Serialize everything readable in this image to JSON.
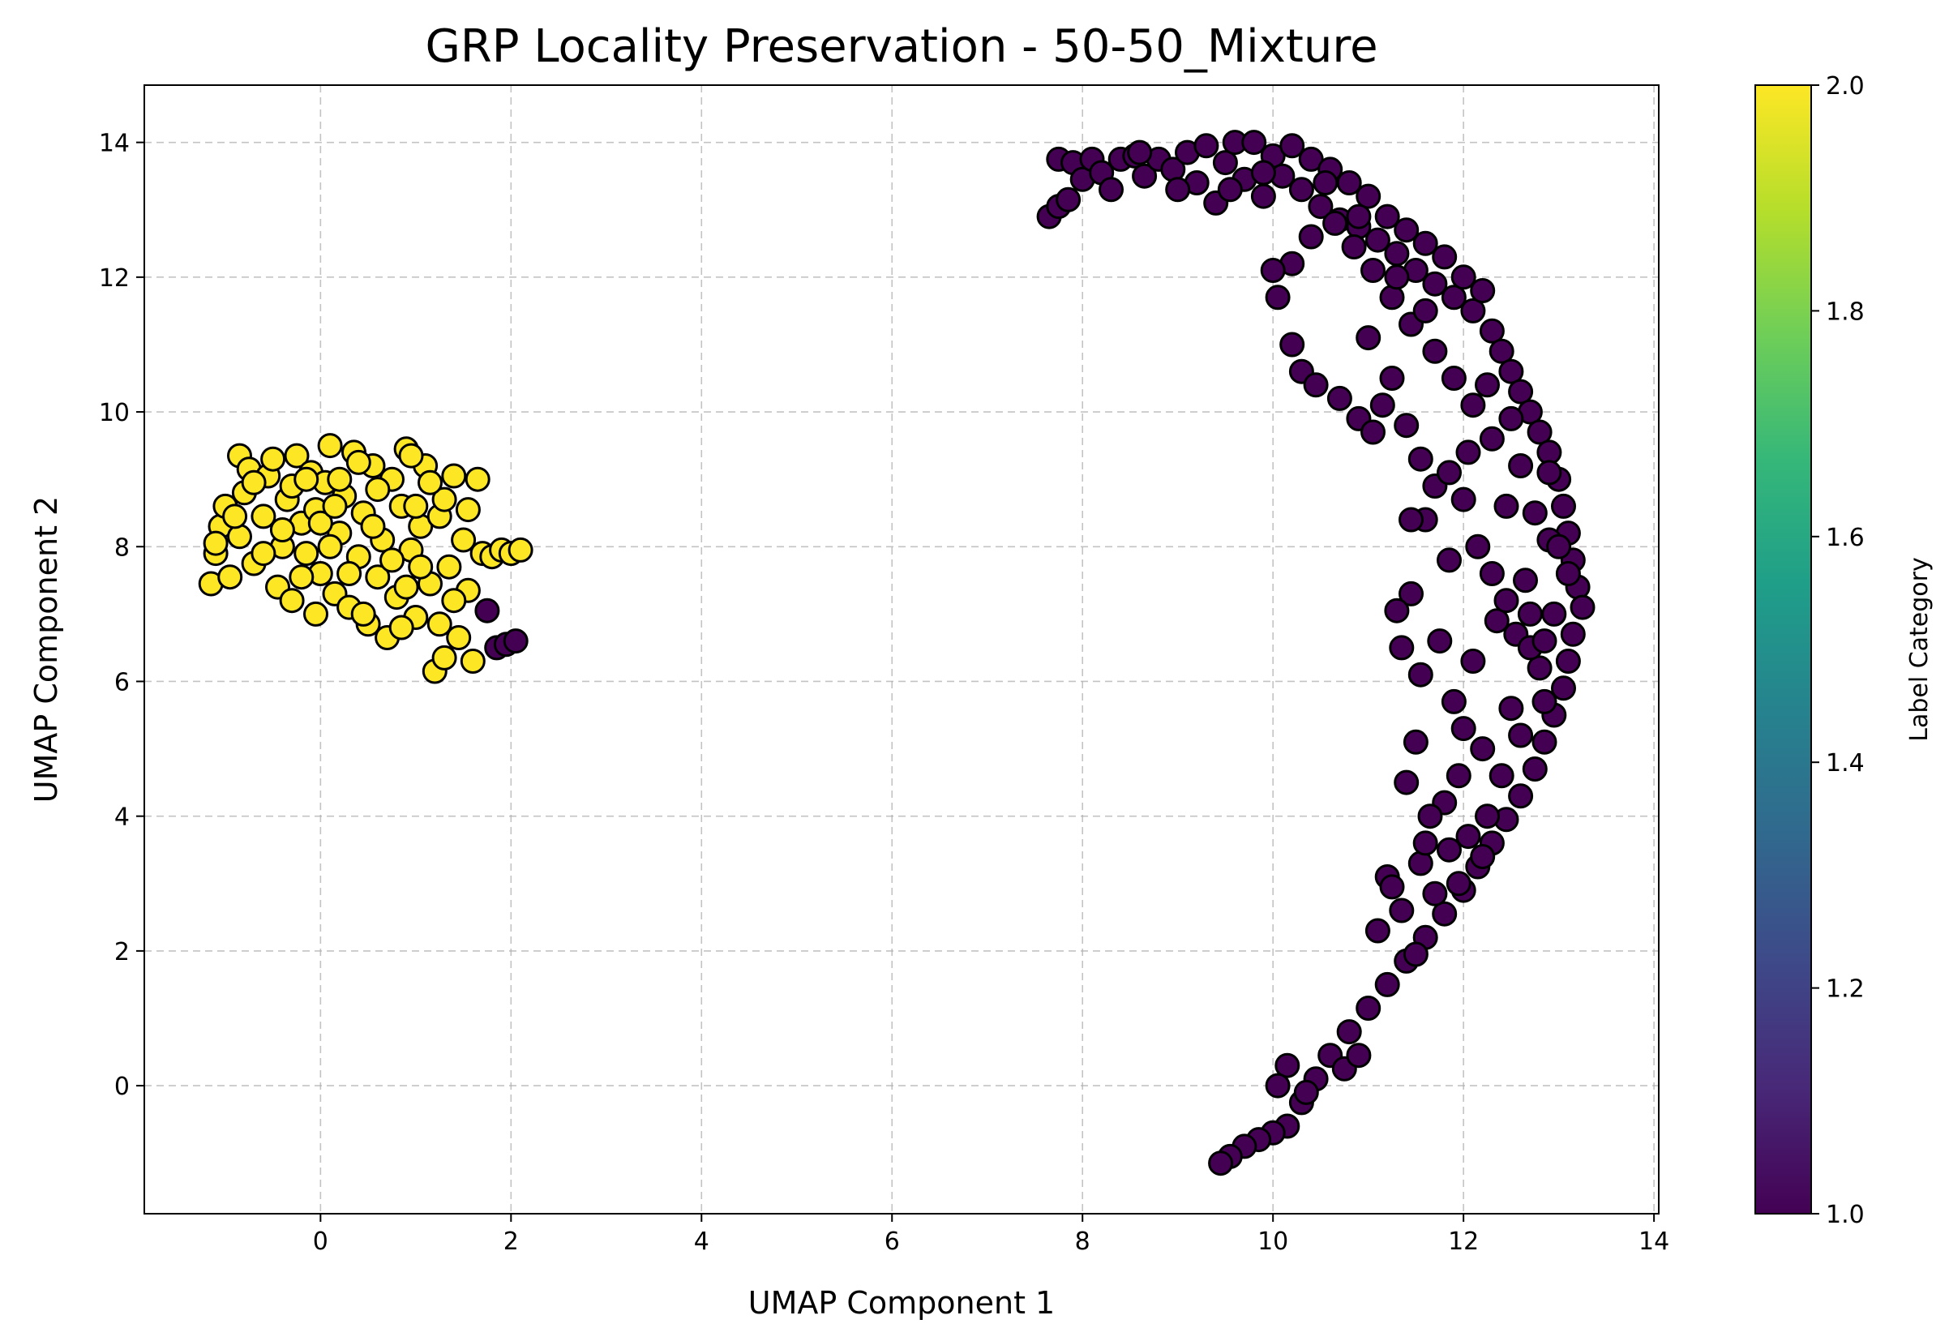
{
  "chart_data": {
    "type": "scatter",
    "title": "GRP Locality Preservation - 50-50_Mixture",
    "xlabel": "UMAP Component 1",
    "ylabel": "UMAP Component 2",
    "xlim": [
      -1.85,
      14.05
    ],
    "ylim": [
      -1.9,
      14.85
    ],
    "xticks": [
      0,
      2,
      4,
      6,
      8,
      10,
      12,
      14
    ],
    "yticks": [
      0,
      2,
      4,
      6,
      8,
      10,
      12,
      14
    ],
    "grid": true,
    "colorbar": {
      "label": "Label Category",
      "range": [
        1.0,
        2.0
      ],
      "ticks": [
        "1.0",
        "1.2",
        "1.4",
        "1.6",
        "1.8",
        "2.0"
      ],
      "colormap": "viridis",
      "stops": [
        "#440154",
        "#482878",
        "#3e4989",
        "#31688e",
        "#26828e",
        "#1f9e89",
        "#35b779",
        "#6ece58",
        "#b5de2b",
        "#fde725"
      ]
    },
    "series": [
      {
        "category": 2.0,
        "color": "#fde725",
        "points": [
          [
            -1.15,
            7.45
          ],
          [
            -1.1,
            7.9
          ],
          [
            -1.05,
            8.3
          ],
          [
            -1.0,
            8.6
          ],
          [
            -1.1,
            8.05
          ],
          [
            -0.95,
            7.55
          ],
          [
            -0.85,
            8.15
          ],
          [
            -0.8,
            8.8
          ],
          [
            -0.85,
            9.35
          ],
          [
            -0.75,
            9.15
          ],
          [
            -0.7,
            7.75
          ],
          [
            -0.6,
            8.45
          ],
          [
            -0.55,
            9.05
          ],
          [
            -0.5,
            9.3
          ],
          [
            -0.45,
            7.4
          ],
          [
            -0.4,
            8.0
          ],
          [
            -0.35,
            8.7
          ],
          [
            -0.3,
            7.2
          ],
          [
            -0.25,
            9.35
          ],
          [
            -0.2,
            8.35
          ],
          [
            -0.15,
            7.9
          ],
          [
            -0.1,
            9.1
          ],
          [
            -0.05,
            8.55
          ],
          [
            0.0,
            7.6
          ],
          [
            0.05,
            8.95
          ],
          [
            0.1,
            9.5
          ],
          [
            0.15,
            7.3
          ],
          [
            0.2,
            8.2
          ],
          [
            0.25,
            8.75
          ],
          [
            0.3,
            7.1
          ],
          [
            0.35,
            9.4
          ],
          [
            0.4,
            7.85
          ],
          [
            0.45,
            8.5
          ],
          [
            0.5,
            6.85
          ],
          [
            0.55,
            9.2
          ],
          [
            0.6,
            7.55
          ],
          [
            0.65,
            8.1
          ],
          [
            0.7,
            6.65
          ],
          [
            0.75,
            9.0
          ],
          [
            0.8,
            7.25
          ],
          [
            0.85,
            8.6
          ],
          [
            0.9,
            9.45
          ],
          [
            0.95,
            7.95
          ],
          [
            1.0,
            6.95
          ],
          [
            1.05,
            8.3
          ],
          [
            1.1,
            9.2
          ],
          [
            1.15,
            7.45
          ],
          [
            1.2,
            6.15
          ],
          [
            1.25,
            8.45
          ],
          [
            1.3,
            6.35
          ],
          [
            1.35,
            7.7
          ],
          [
            1.4,
            9.05
          ],
          [
            1.45,
            6.65
          ],
          [
            1.5,
            8.1
          ],
          [
            1.55,
            7.35
          ],
          [
            1.6,
            6.3
          ],
          [
            1.65,
            9.0
          ],
          [
            1.7,
            7.9
          ],
          [
            1.8,
            7.85
          ],
          [
            1.9,
            7.95
          ],
          [
            2.0,
            7.9
          ],
          [
            2.1,
            7.95
          ],
          [
            0.1,
            8.0
          ],
          [
            -0.3,
            8.9
          ],
          [
            0.6,
            8.85
          ],
          [
            1.0,
            8.6
          ],
          [
            0.3,
            7.6
          ],
          [
            -0.6,
            7.9
          ],
          [
            0.9,
            7.4
          ],
          [
            0.2,
            9.0
          ],
          [
            -0.9,
            8.45
          ],
          [
            1.3,
            8.7
          ],
          [
            0.45,
            7.0
          ],
          [
            -0.2,
            7.55
          ],
          [
            1.15,
            8.95
          ],
          [
            0.75,
            7.8
          ],
          [
            0.0,
            8.35
          ],
          [
            -0.4,
            8.25
          ],
          [
            1.4,
            7.2
          ],
          [
            0.85,
            6.8
          ],
          [
            0.15,
            8.6
          ],
          [
            -0.7,
            8.95
          ],
          [
            0.55,
            8.3
          ],
          [
            1.05,
            7.7
          ],
          [
            -0.05,
            7.0
          ],
          [
            1.25,
            6.85
          ],
          [
            0.4,
            9.25
          ],
          [
            -0.15,
            9.0
          ],
          [
            0.95,
            9.35
          ],
          [
            1.55,
            8.55
          ]
        ]
      },
      {
        "category": 1.0,
        "color": "#440154",
        "points": [
          [
            7.65,
            12.9
          ],
          [
            7.75,
            13.05
          ],
          [
            7.85,
            13.15
          ],
          [
            7.75,
            13.75
          ],
          [
            7.9,
            13.7
          ],
          [
            8.0,
            13.45
          ],
          [
            8.1,
            13.75
          ],
          [
            8.2,
            13.55
          ],
          [
            8.3,
            13.3
          ],
          [
            8.4,
            13.75
          ],
          [
            8.55,
            13.8
          ],
          [
            8.65,
            13.5
          ],
          [
            8.8,
            13.75
          ],
          [
            8.95,
            13.6
          ],
          [
            9.1,
            13.85
          ],
          [
            9.2,
            13.4
          ],
          [
            9.3,
            13.95
          ],
          [
            9.4,
            13.1
          ],
          [
            9.5,
            13.7
          ],
          [
            9.6,
            14.0
          ],
          [
            9.7,
            13.45
          ],
          [
            9.8,
            14.0
          ],
          [
            9.9,
            13.2
          ],
          [
            10.0,
            13.8
          ],
          [
            10.1,
            13.5
          ],
          [
            10.2,
            13.95
          ],
          [
            10.3,
            13.3
          ],
          [
            10.4,
            13.75
          ],
          [
            10.5,
            13.05
          ],
          [
            10.6,
            13.6
          ],
          [
            10.7,
            12.85
          ],
          [
            10.8,
            13.4
          ],
          [
            10.9,
            12.75
          ],
          [
            11.0,
            13.2
          ],
          [
            11.1,
            12.55
          ],
          [
            11.2,
            12.9
          ],
          [
            11.3,
            12.35
          ],
          [
            11.4,
            12.7
          ],
          [
            11.5,
            12.1
          ],
          [
            11.6,
            12.5
          ],
          [
            11.7,
            11.9
          ],
          [
            11.8,
            12.3
          ],
          [
            11.9,
            11.7
          ],
          [
            12.0,
            12.0
          ],
          [
            12.1,
            11.5
          ],
          [
            12.2,
            11.8
          ],
          [
            12.3,
            11.2
          ],
          [
            12.4,
            10.9
          ],
          [
            12.5,
            10.6
          ],
          [
            12.6,
            10.3
          ],
          [
            12.7,
            10.0
          ],
          [
            12.8,
            9.7
          ],
          [
            12.9,
            9.4
          ],
          [
            13.0,
            9.0
          ],
          [
            13.05,
            8.6
          ],
          [
            13.1,
            8.2
          ],
          [
            13.15,
            7.8
          ],
          [
            13.2,
            7.4
          ],
          [
            13.25,
            7.1
          ],
          [
            13.15,
            6.7
          ],
          [
            13.1,
            6.3
          ],
          [
            13.05,
            5.9
          ],
          [
            12.95,
            5.5
          ],
          [
            12.85,
            5.1
          ],
          [
            12.75,
            4.7
          ],
          [
            12.6,
            4.3
          ],
          [
            12.45,
            3.95
          ],
          [
            12.3,
            3.6
          ],
          [
            12.15,
            3.25
          ],
          [
            12.0,
            2.9
          ],
          [
            11.8,
            2.55
          ],
          [
            11.6,
            2.2
          ],
          [
            11.4,
            1.85
          ],
          [
            11.2,
            1.5
          ],
          [
            11.0,
            1.15
          ],
          [
            10.8,
            0.8
          ],
          [
            10.6,
            0.45
          ],
          [
            10.45,
            0.1
          ],
          [
            10.3,
            -0.25
          ],
          [
            10.15,
            -0.6
          ],
          [
            10.0,
            -0.7
          ],
          [
            9.85,
            -0.8
          ],
          [
            9.7,
            -0.9
          ],
          [
            9.55,
            -1.05
          ],
          [
            9.45,
            -1.15
          ],
          [
            10.75,
            0.25
          ],
          [
            10.9,
            0.45
          ],
          [
            10.15,
            0.3
          ],
          [
            10.05,
            0.0
          ],
          [
            10.35,
            -0.1
          ],
          [
            11.2,
            3.1
          ],
          [
            11.35,
            2.6
          ],
          [
            11.1,
            2.3
          ],
          [
            11.55,
            3.3
          ],
          [
            11.7,
            2.85
          ],
          [
            11.5,
            1.95
          ],
          [
            11.85,
            3.5
          ],
          [
            11.95,
            3.0
          ],
          [
            11.6,
            3.6
          ],
          [
            11.25,
            2.95
          ],
          [
            11.8,
            4.2
          ],
          [
            11.65,
            4.0
          ],
          [
            11.5,
            5.1
          ],
          [
            11.4,
            4.5
          ],
          [
            11.35,
            6.5
          ],
          [
            11.45,
            7.3
          ],
          [
            11.3,
            7.05
          ],
          [
            11.55,
            6.1
          ],
          [
            11.6,
            8.4
          ],
          [
            11.45,
            8.4
          ],
          [
            11.9,
            5.7
          ],
          [
            12.1,
            6.3
          ],
          [
            12.2,
            5.0
          ],
          [
            12.35,
            6.9
          ],
          [
            12.5,
            5.6
          ],
          [
            12.65,
            7.5
          ],
          [
            12.8,
            6.2
          ],
          [
            12.9,
            8.1
          ],
          [
            12.45,
            8.6
          ],
          [
            12.6,
            9.2
          ],
          [
            12.3,
            9.6
          ],
          [
            12.1,
            10.1
          ],
          [
            11.9,
            10.5
          ],
          [
            11.7,
            10.9
          ],
          [
            11.45,
            11.3
          ],
          [
            11.25,
            11.7
          ],
          [
            11.05,
            12.1
          ],
          [
            10.85,
            12.45
          ],
          [
            10.65,
            12.8
          ],
          [
            10.4,
            12.6
          ],
          [
            10.2,
            12.2
          ],
          [
            10.0,
            12.1
          ],
          [
            10.05,
            11.7
          ],
          [
            10.2,
            11.0
          ],
          [
            10.3,
            10.6
          ],
          [
            10.45,
            10.4
          ],
          [
            10.7,
            10.2
          ],
          [
            10.9,
            9.9
          ],
          [
            11.05,
            9.7
          ],
          [
            11.25,
            10.5
          ],
          [
            11.4,
            9.8
          ],
          [
            11.55,
            9.3
          ],
          [
            11.7,
            8.9
          ],
          [
            11.85,
            9.1
          ],
          [
            12.0,
            8.7
          ],
          [
            12.15,
            8.0
          ],
          [
            12.3,
            7.6
          ],
          [
            12.45,
            7.2
          ],
          [
            12.55,
            6.7
          ],
          [
            12.7,
            6.5
          ],
          [
            12.95,
            7.0
          ],
          [
            13.1,
            7.6
          ],
          [
            12.85,
            5.7
          ],
          [
            12.6,
            5.2
          ],
          [
            12.4,
            4.6
          ],
          [
            12.25,
            4.0
          ],
          [
            12.05,
            3.7
          ],
          [
            12.2,
            3.4
          ],
          [
            11.95,
            4.6
          ],
          [
            12.0,
            5.3
          ],
          [
            11.75,
            6.6
          ],
          [
            11.85,
            7.8
          ],
          [
            12.05,
            9.4
          ],
          [
            12.25,
            10.4
          ],
          [
            12.5,
            9.9
          ],
          [
            11.6,
            11.5
          ],
          [
            11.3,
            12.0
          ],
          [
            10.9,
            12.9
          ],
          [
            10.55,
            13.4
          ],
          [
            9.9,
            13.55
          ],
          [
            9.55,
            13.3
          ],
          [
            9.0,
            13.3
          ],
          [
            8.6,
            13.85
          ],
          [
            11.0,
            11.1
          ],
          [
            11.15,
            10.1
          ],
          [
            12.75,
            8.5
          ],
          [
            12.9,
            9.1
          ],
          [
            13.0,
            8.0
          ],
          [
            12.7,
            7.0
          ],
          [
            12.85,
            6.6
          ],
          [
            1.75,
            7.05
          ],
          [
            1.85,
            6.5
          ],
          [
            1.95,
            6.55
          ],
          [
            2.05,
            6.6
          ]
        ]
      }
    ]
  }
}
